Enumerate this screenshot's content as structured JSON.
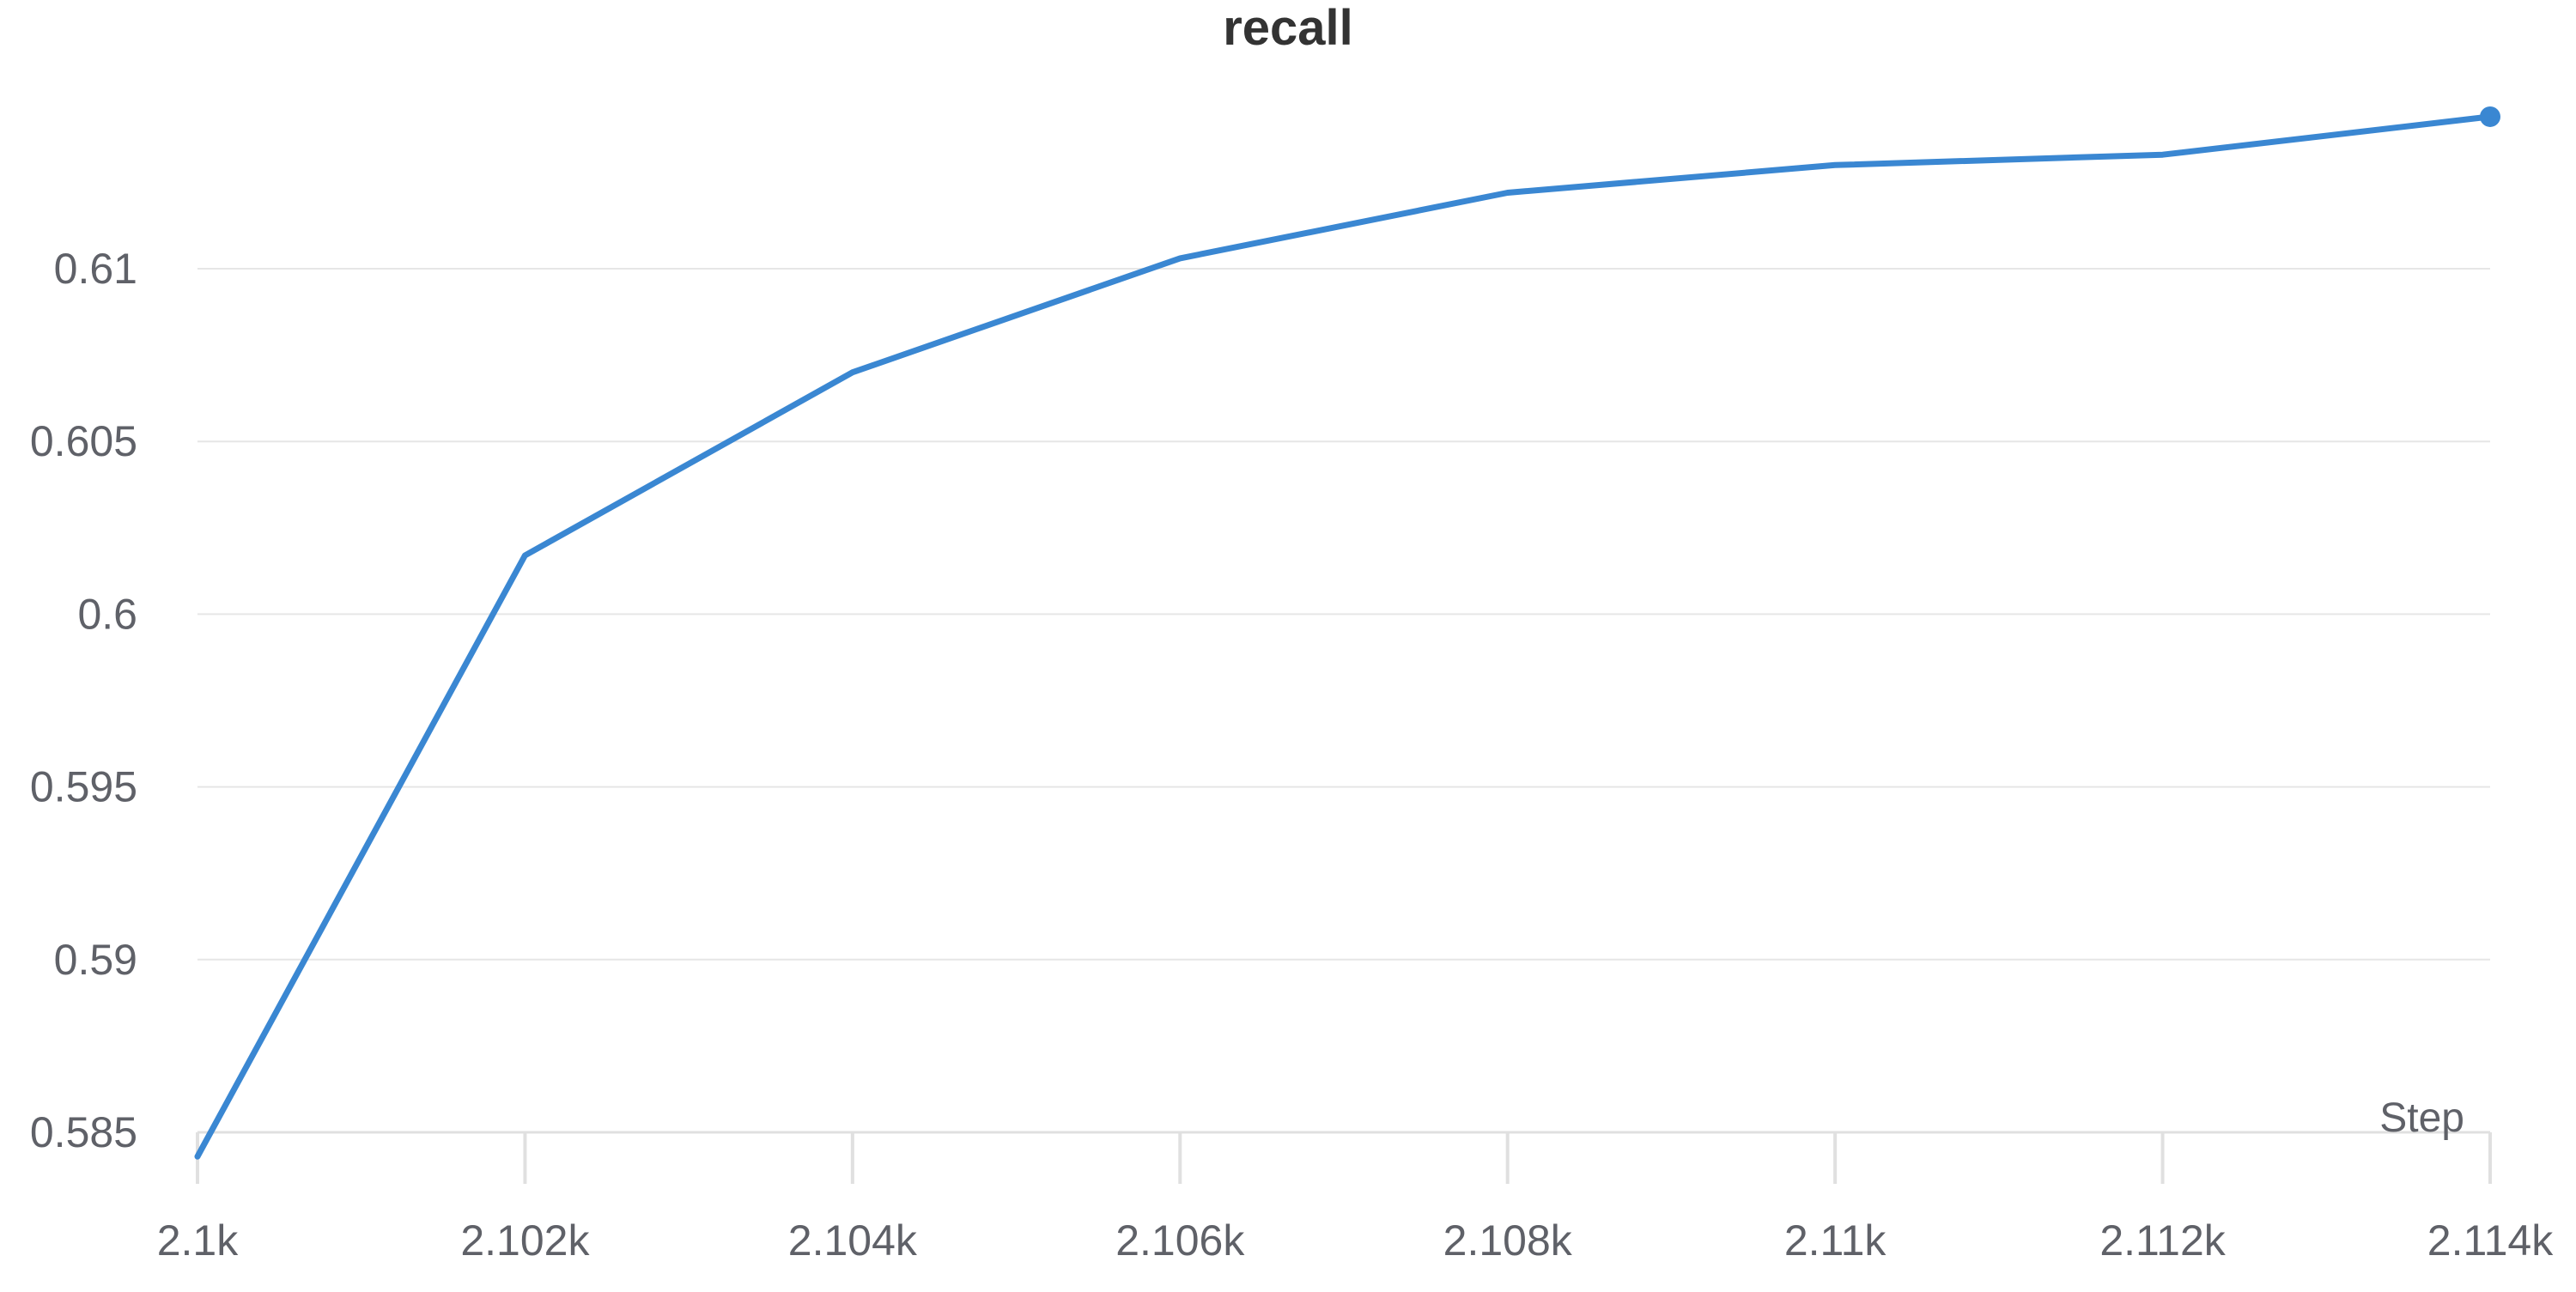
{
  "chart_data": {
    "type": "line",
    "title": "recall",
    "xlabel": "Step",
    "ylabel": "",
    "x": [
      2100,
      2102,
      2104,
      2106,
      2108,
      2110,
      2112,
      2114
    ],
    "series": [
      {
        "values": [
          0.5843,
          0.6017,
          0.607,
          0.6103,
          0.6122,
          0.613,
          0.6133,
          0.6144
        ],
        "color": "#3a87d2"
      }
    ],
    "xlim": [
      2100,
      2114
    ],
    "ylim": [
      0.585,
      0.6149
    ],
    "x_ticks": [
      2100,
      2102,
      2104,
      2106,
      2108,
      2110,
      2112,
      2114
    ],
    "x_tick_labels": [
      "2.1k",
      "2.102k",
      "2.104k",
      "2.106k",
      "2.108k",
      "2.11k",
      "2.112k",
      "2.114k"
    ],
    "y_ticks": [
      0.585,
      0.59,
      0.595,
      0.6,
      0.605,
      0.61
    ],
    "y_tick_labels": [
      "0.585",
      "0.59",
      "0.595",
      "0.6",
      "0.605",
      "0.61"
    ],
    "grid": true,
    "last_point_marker": true
  },
  "colors": {
    "line": "#3a87d2",
    "marker": "#3a87d2",
    "grid": "#e6e6e6",
    "axis": "#e0e0e0",
    "text": "#5f6168",
    "title": "#333333"
  }
}
